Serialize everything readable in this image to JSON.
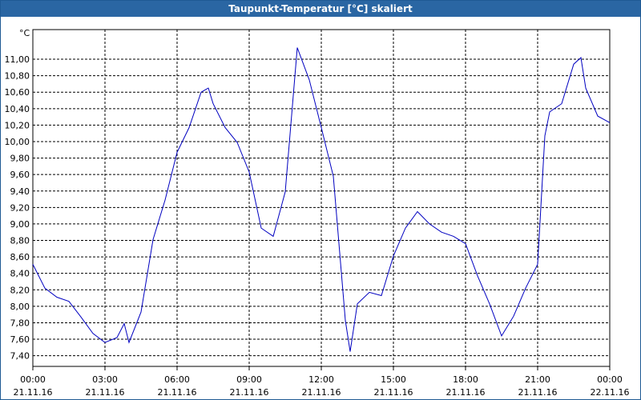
{
  "chart_data": {
    "type": "line",
    "title": "Taupunkt-Temperatur [°C] skaliert",
    "y_label": "°C",
    "x": [
      0,
      0.5,
      1,
      1.5,
      2,
      2.5,
      3,
      3.5,
      3.8,
      4,
      4.5,
      5,
      5.5,
      6,
      6.5,
      7,
      7.3,
      7.5,
      8,
      8.5,
      9,
      9.5,
      10,
      10.5,
      11,
      11.5,
      12,
      12.5,
      13,
      13.2,
      13.5,
      14,
      14.5,
      15,
      15.5,
      16,
      16.5,
      17,
      17.5,
      18,
      18.5,
      19,
      19.5,
      20,
      20.5,
      21,
      21.3,
      21.5,
      22,
      22.5,
      22.8,
      23,
      23.5,
      24
    ],
    "values": [
      8.51,
      8.22,
      8.11,
      8.06,
      7.87,
      7.67,
      7.56,
      7.62,
      7.79,
      7.56,
      7.93,
      8.81,
      9.29,
      9.87,
      10.17,
      10.6,
      10.65,
      10.46,
      10.17,
      9.99,
      9.63,
      8.95,
      8.85,
      9.39,
      11.14,
      10.75,
      10.17,
      9.58,
      7.83,
      7.45,
      8.03,
      8.17,
      8.13,
      8.61,
      8.95,
      9.15,
      9.0,
      8.9,
      8.85,
      8.76,
      8.37,
      8.03,
      7.64,
      7.88,
      8.22,
      8.51,
      10.07,
      10.36,
      10.46,
      10.94,
      11.02,
      10.65,
      10.31,
      10.23
    ],
    "color": "#0000c0",
    "xlim": [
      0,
      24
    ],
    "xticks": [
      {
        "value": 0,
        "label": "00:00",
        "date": "21.11.16"
      },
      {
        "value": 3,
        "label": "03:00",
        "date": "21.11.16"
      },
      {
        "value": 6,
        "label": "06:00",
        "date": "21.11.16"
      },
      {
        "value": 9,
        "label": "09:00",
        "date": "21.11.16"
      },
      {
        "value": 12,
        "label": "12:00",
        "date": "21.11.16"
      },
      {
        "value": 15,
        "label": "15:00",
        "date": "21.11.16"
      },
      {
        "value": 18,
        "label": "18:00",
        "date": "21.11.16"
      },
      {
        "value": 21,
        "label": "21:00",
        "date": "21.11.16"
      },
      {
        "value": 24,
        "label": "00:00",
        "date": "22.11.16"
      }
    ],
    "ylim": [
      7.27,
      11.36
    ],
    "yticks": [
      {
        "value": 7.4,
        "label": "7,40"
      },
      {
        "value": 7.6,
        "label": "7,60"
      },
      {
        "value": 7.8,
        "label": "7,80"
      },
      {
        "value": 8.0,
        "label": "8,00"
      },
      {
        "value": 8.2,
        "label": "8,20"
      },
      {
        "value": 8.4,
        "label": "8,40"
      },
      {
        "value": 8.6,
        "label": "8,60"
      },
      {
        "value": 8.8,
        "label": "8,80"
      },
      {
        "value": 9.0,
        "label": "9,00"
      },
      {
        "value": 9.2,
        "label": "9,20"
      },
      {
        "value": 9.4,
        "label": "9,40"
      },
      {
        "value": 9.6,
        "label": "9,60"
      },
      {
        "value": 9.8,
        "label": "9,80"
      },
      {
        "value": 10.0,
        "label": "10,00"
      },
      {
        "value": 10.2,
        "label": "10,20"
      },
      {
        "value": 10.4,
        "label": "10,40"
      },
      {
        "value": 10.6,
        "label": "10,60"
      },
      {
        "value": 10.8,
        "label": "10,80"
      },
      {
        "value": 11.0,
        "label": "11,00"
      }
    ],
    "grid": true
  }
}
